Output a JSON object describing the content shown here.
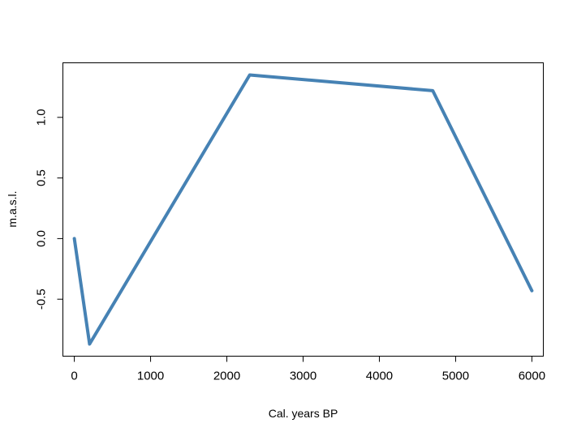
{
  "chart_data": {
    "type": "line",
    "title": "",
    "xlabel": "Cal. years BP",
    "ylabel": "m.a.s.l.",
    "xlim": [
      -150,
      6150
    ],
    "ylim": [
      -0.97,
      1.45
    ],
    "x_ticks": [
      0,
      1000,
      2000,
      3000,
      4000,
      5000,
      6000
    ],
    "x_tick_labels": [
      "0",
      "1000",
      "2000",
      "3000",
      "4000",
      "5000",
      "6000"
    ],
    "y_ticks": [
      -0.5,
      0.0,
      0.5,
      1.0
    ],
    "y_tick_labels": [
      "-0.5",
      "0.0",
      "0.5",
      "1.0"
    ],
    "grid": false,
    "legend": "none",
    "series": [
      {
        "color": "#4682b4",
        "x": [
          0,
          200,
          2300,
          4700,
          6000
        ],
        "y": [
          0.0,
          -0.87,
          1.35,
          1.22,
          -0.43
        ]
      }
    ]
  }
}
